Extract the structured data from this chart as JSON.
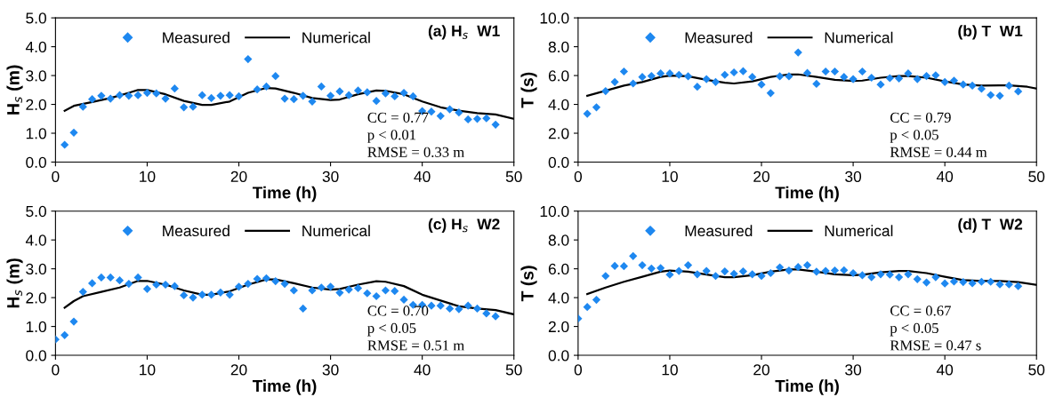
{
  "chart_data": [
    {
      "type": "scatter",
      "title": "(a) H$_{s}$  W1",
      "xlabel": "Time (h)",
      "ylabel": "H$_{s}$ (m)",
      "xlim": [
        0,
        50
      ],
      "xticks": [
        0,
        10,
        20,
        30,
        40,
        50
      ],
      "ylim": [
        0,
        5
      ],
      "yticks": [
        {
          "value": 0,
          "label": "0.0"
        },
        {
          "value": 1,
          "label": "1.0"
        },
        {
          "value": 2,
          "label": "2.0"
        },
        {
          "value": 3,
          "label": "3.0"
        },
        {
          "value": 4,
          "label": "4.0"
        },
        {
          "value": 5,
          "label": "5.0"
        }
      ],
      "legend": "top left",
      "grid": false,
      "annotations": [
        "CC = 0.77",
        "p < 0.01",
        "RMSE = 0.33 m"
      ],
      "series": [
        {
          "name": "Measured",
          "marker": "diamond",
          "color": "#1e88f0",
          "x": [
            1,
            2,
            3,
            4,
            5,
            6,
            7,
            8,
            9,
            10,
            11,
            12,
            13,
            14,
            15,
            16,
            17,
            18,
            19,
            20,
            21,
            22,
            23,
            24,
            25,
            26,
            27,
            28,
            29,
            30,
            31,
            32,
            33,
            34,
            35,
            36,
            37,
            38,
            39,
            40,
            41,
            42,
            43,
            44,
            45,
            46,
            47,
            48
          ],
          "values": [
            0.6,
            1.02,
            1.92,
            2.18,
            2.3,
            2.2,
            2.32,
            2.3,
            2.32,
            2.4,
            2.38,
            2.2,
            2.55,
            1.9,
            1.92,
            2.32,
            2.22,
            2.3,
            2.32,
            2.28,
            3.57,
            2.52,
            2.62,
            2.98,
            2.2,
            2.18,
            2.3,
            2.1,
            2.62,
            2.3,
            2.45,
            2.32,
            2.48,
            2.42,
            2.12,
            2.38,
            2.28,
            2.4,
            2.28,
            1.77,
            1.75,
            1.6,
            1.83,
            1.72,
            1.48,
            1.5,
            1.52,
            1.3
          ]
        },
        {
          "name": "Numerical",
          "type": "line",
          "line_style": "solid",
          "marker": "none",
          "color": "#000000",
          "x": [
            1,
            2,
            4,
            6,
            8,
            9,
            10,
            12,
            14,
            16,
            17,
            19,
            21,
            23,
            24,
            26,
            28,
            30,
            31,
            33,
            35,
            36,
            38,
            40,
            42,
            44,
            46,
            48,
            50
          ],
          "values": [
            1.78,
            1.95,
            2.08,
            2.22,
            2.4,
            2.5,
            2.5,
            2.35,
            2.12,
            1.98,
            1.98,
            2.1,
            2.4,
            2.57,
            2.55,
            2.4,
            2.22,
            2.15,
            2.17,
            2.35,
            2.48,
            2.47,
            2.35,
            2.1,
            1.9,
            1.78,
            1.7,
            1.65,
            1.5
          ]
        }
      ]
    },
    {
      "type": "scatter",
      "title": "(b) T  W1",
      "xlabel": "Time (h)",
      "ylabel": "T (s)",
      "xlim": [
        0,
        50
      ],
      "xticks": [
        0,
        10,
        20,
        30,
        40,
        50
      ],
      "ylim": [
        0,
        10
      ],
      "yticks": [
        {
          "value": 0,
          "label": "0.0"
        },
        {
          "value": 2,
          "label": "2.0"
        },
        {
          "value": 4,
          "label": "4.0"
        },
        {
          "value": 6,
          "label": "6.0"
        },
        {
          "value": 8,
          "label": "8.0"
        },
        {
          "value": 10,
          "label": "10.0"
        }
      ],
      "legend": "top left",
      "grid": false,
      "annotations": [
        "CC = 0.79",
        "p < 0.05",
        "RMSE = 0.44 m"
      ],
      "series": [
        {
          "name": "Measured",
          "marker": "diamond",
          "color": "#1e88f0",
          "x": [
            1,
            2,
            3,
            4,
            5,
            6,
            7,
            8,
            9,
            10,
            11,
            12,
            13,
            14,
            15,
            16,
            17,
            18,
            19,
            20,
            21,
            22,
            23,
            24,
            25,
            26,
            27,
            28,
            29,
            30,
            31,
            32,
            33,
            34,
            35,
            36,
            37,
            38,
            39,
            40,
            41,
            42,
            43,
            44,
            45,
            46,
            47,
            48
          ],
          "values": [
            3.35,
            3.8,
            4.92,
            5.55,
            6.28,
            5.45,
            5.9,
            5.97,
            6.15,
            6.15,
            6.05,
            5.95,
            5.22,
            5.75,
            5.55,
            6.05,
            6.22,
            6.3,
            5.9,
            5.38,
            4.78,
            5.95,
            5.95,
            7.6,
            6.18,
            5.42,
            6.28,
            6.28,
            5.9,
            5.75,
            6.28,
            5.85,
            5.38,
            5.82,
            5.8,
            6.15,
            5.75,
            5.97,
            6.02,
            5.55,
            5.65,
            5.38,
            5.3,
            5.08,
            4.65,
            4.6,
            5.3,
            4.9
          ]
        },
        {
          "name": "Numerical",
          "type": "line",
          "line_style": "solid",
          "marker": "none",
          "color": "#000000",
          "x": [
            1,
            3,
            5,
            7,
            9,
            10,
            12,
            14,
            16,
            17,
            19,
            21,
            23,
            24,
            26,
            28,
            30,
            31,
            33,
            35,
            36,
            38,
            40,
            42,
            44,
            46,
            47,
            49,
            50
          ],
          "values": [
            4.6,
            4.95,
            5.3,
            5.55,
            5.9,
            6.0,
            5.95,
            5.7,
            5.5,
            5.45,
            5.6,
            5.9,
            6.08,
            6.08,
            5.9,
            5.7,
            5.62,
            5.65,
            5.85,
            5.97,
            5.97,
            5.85,
            5.6,
            5.38,
            5.3,
            5.32,
            5.32,
            5.22,
            5.1
          ]
        }
      ]
    },
    {
      "type": "scatter",
      "title": "(c) H$_{s}$  W2",
      "xlabel": "Time (h)",
      "ylabel": "H$_{s}$ (m)",
      "xlim": [
        0,
        50
      ],
      "xticks": [
        0,
        10,
        20,
        30,
        40,
        50
      ],
      "ylim": [
        0,
        5
      ],
      "yticks": [
        {
          "value": 0,
          "label": "0.0"
        },
        {
          "value": 1,
          "label": "1.0"
        },
        {
          "value": 2,
          "label": "2.0"
        },
        {
          "value": 3,
          "label": "3.0"
        },
        {
          "value": 4,
          "label": "4.0"
        },
        {
          "value": 5,
          "label": "5.0"
        }
      ],
      "legend": "top left",
      "grid": false,
      "annotations": [
        "CC = 0.70",
        "p < 0.05",
        "RMSE = 0.51 m"
      ],
      "series": [
        {
          "name": "Measured",
          "marker": "diamond",
          "color": "#1e88f0",
          "x": [
            0,
            1,
            2,
            3,
            4,
            5,
            6,
            7,
            8,
            9,
            10,
            11,
            12,
            13,
            14,
            15,
            16,
            17,
            18,
            19,
            20,
            21,
            22,
            23,
            24,
            25,
            26,
            27,
            28,
            29,
            30,
            31,
            32,
            33,
            34,
            35,
            36,
            37,
            38,
            39,
            40,
            41,
            42,
            43,
            44,
            45,
            46,
            47,
            48
          ],
          "values": [
            0.55,
            0.7,
            1.17,
            2.2,
            2.5,
            2.7,
            2.7,
            2.6,
            2.48,
            2.7,
            2.3,
            2.45,
            2.45,
            2.4,
            2.08,
            2.0,
            2.1,
            2.1,
            2.18,
            2.1,
            2.38,
            2.48,
            2.65,
            2.67,
            2.57,
            2.48,
            2.25,
            1.62,
            2.25,
            2.35,
            2.38,
            2.17,
            2.28,
            2.33,
            2.15,
            2.05,
            2.25,
            2.23,
            1.93,
            1.75,
            1.75,
            1.72,
            1.72,
            1.62,
            1.6,
            1.72,
            1.62,
            1.45,
            1.35
          ]
        },
        {
          "name": "Numerical",
          "type": "line",
          "line_style": "solid",
          "marker": "none",
          "color": "#000000",
          "x": [
            1,
            2,
            3,
            5,
            7,
            9,
            10,
            12,
            14,
            16,
            17,
            19,
            21,
            23,
            24,
            26,
            28,
            30,
            31,
            33,
            35,
            36,
            38,
            40,
            42,
            44,
            46,
            48,
            50
          ],
          "values": [
            1.65,
            1.88,
            2.05,
            2.2,
            2.35,
            2.58,
            2.58,
            2.45,
            2.25,
            2.1,
            2.1,
            2.22,
            2.45,
            2.63,
            2.63,
            2.5,
            2.35,
            2.28,
            2.3,
            2.45,
            2.57,
            2.55,
            2.4,
            2.1,
            1.9,
            1.7,
            1.62,
            1.57,
            1.42
          ]
        }
      ]
    },
    {
      "type": "scatter",
      "title": "(d) T  W2",
      "xlabel": "Time (h)",
      "ylabel": "T (s)",
      "xlim": [
        0,
        50
      ],
      "xticks": [
        0,
        10,
        20,
        30,
        40,
        50
      ],
      "ylim": [
        0,
        10
      ],
      "yticks": [
        {
          "value": 0,
          "label": "0.0"
        },
        {
          "value": 2,
          "label": "2.0"
        },
        {
          "value": 4,
          "label": "4.0"
        },
        {
          "value": 6,
          "label": "6.0"
        },
        {
          "value": 8,
          "label": "8.0"
        },
        {
          "value": 10,
          "label": "10.0"
        }
      ],
      "legend": "top left",
      "grid": false,
      "annotations": [
        "CC = 0.67",
        "p < 0.05",
        "RMSE = 0.47 s"
      ],
      "series": [
        {
          "name": "Measured",
          "marker": "diamond",
          "color": "#1e88f0",
          "x": [
            0,
            1,
            2,
            3,
            4,
            5,
            6,
            7,
            8,
            9,
            10,
            11,
            12,
            13,
            14,
            15,
            16,
            17,
            18,
            19,
            20,
            21,
            22,
            23,
            24,
            25,
            26,
            27,
            28,
            29,
            30,
            31,
            32,
            33,
            34,
            35,
            36,
            37,
            38,
            39,
            40,
            41,
            42,
            43,
            44,
            45,
            46,
            47,
            48
          ],
          "values": [
            2.55,
            3.35,
            3.85,
            5.5,
            6.2,
            6.18,
            6.88,
            6.25,
            6.02,
            6.05,
            5.6,
            5.85,
            6.25,
            5.62,
            5.85,
            5.5,
            5.82,
            5.65,
            5.82,
            5.62,
            5.5,
            5.7,
            6.1,
            5.88,
            6.12,
            6.25,
            5.8,
            5.85,
            5.88,
            5.9,
            5.7,
            5.55,
            5.42,
            5.62,
            5.6,
            5.42,
            5.62,
            5.28,
            5.05,
            5.42,
            4.98,
            5.12,
            5.08,
            5.0,
            5.1,
            5.1,
            4.92,
            4.92,
            4.8
          ]
        },
        {
          "name": "Numerical",
          "type": "line",
          "line_style": "solid",
          "marker": "none",
          "color": "#000000",
          "x": [
            1,
            3,
            5,
            7,
            9,
            10,
            12,
            14,
            16,
            17,
            19,
            21,
            23,
            24,
            26,
            28,
            30,
            31,
            33,
            35,
            36,
            38,
            40,
            42,
            44,
            46,
            48,
            50
          ],
          "values": [
            4.25,
            4.7,
            5.1,
            5.45,
            5.8,
            5.88,
            5.8,
            5.6,
            5.42,
            5.42,
            5.55,
            5.8,
            5.95,
            5.95,
            5.8,
            5.62,
            5.55,
            5.58,
            5.75,
            5.85,
            5.85,
            5.7,
            5.45,
            5.22,
            5.15,
            5.15,
            5.08,
            4.88
          ]
        }
      ]
    }
  ]
}
